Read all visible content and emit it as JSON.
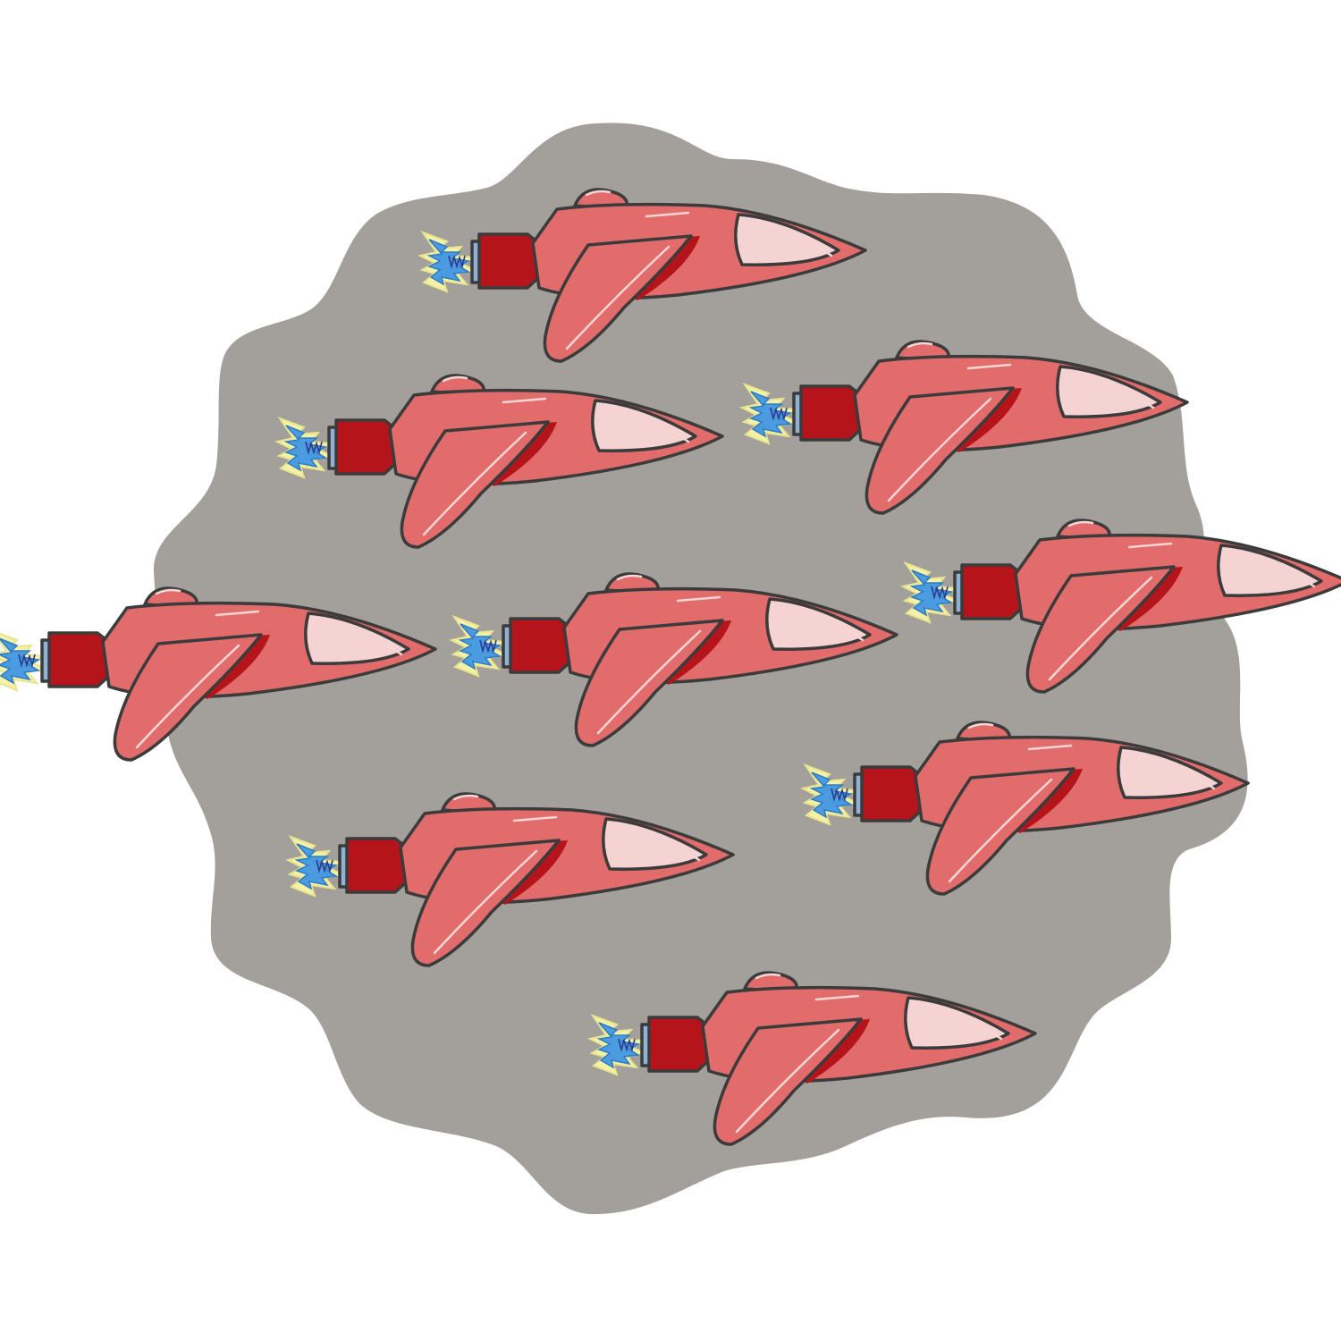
{
  "scene": {
    "background_color": "#ffffff",
    "blob_color": "#a39f9a"
  },
  "palette": {
    "hull": "#e26b6b",
    "hull_shadow": "#b5151a",
    "canopy": "#f6d3d3",
    "thruster": "#b5151a",
    "flame_blue": "#4a9be0",
    "flame_glow": "#f4f2a8",
    "outline": "#3b3b3b"
  },
  "items": [
    {
      "name": "rocket-ship"
    },
    {
      "name": "rocket-ship"
    },
    {
      "name": "rocket-ship"
    },
    {
      "name": "rocket-ship"
    },
    {
      "name": "rocket-ship"
    },
    {
      "name": "rocket-ship"
    },
    {
      "name": "rocket-ship"
    },
    {
      "name": "rocket-ship"
    },
    {
      "name": "rocket-ship"
    }
  ]
}
